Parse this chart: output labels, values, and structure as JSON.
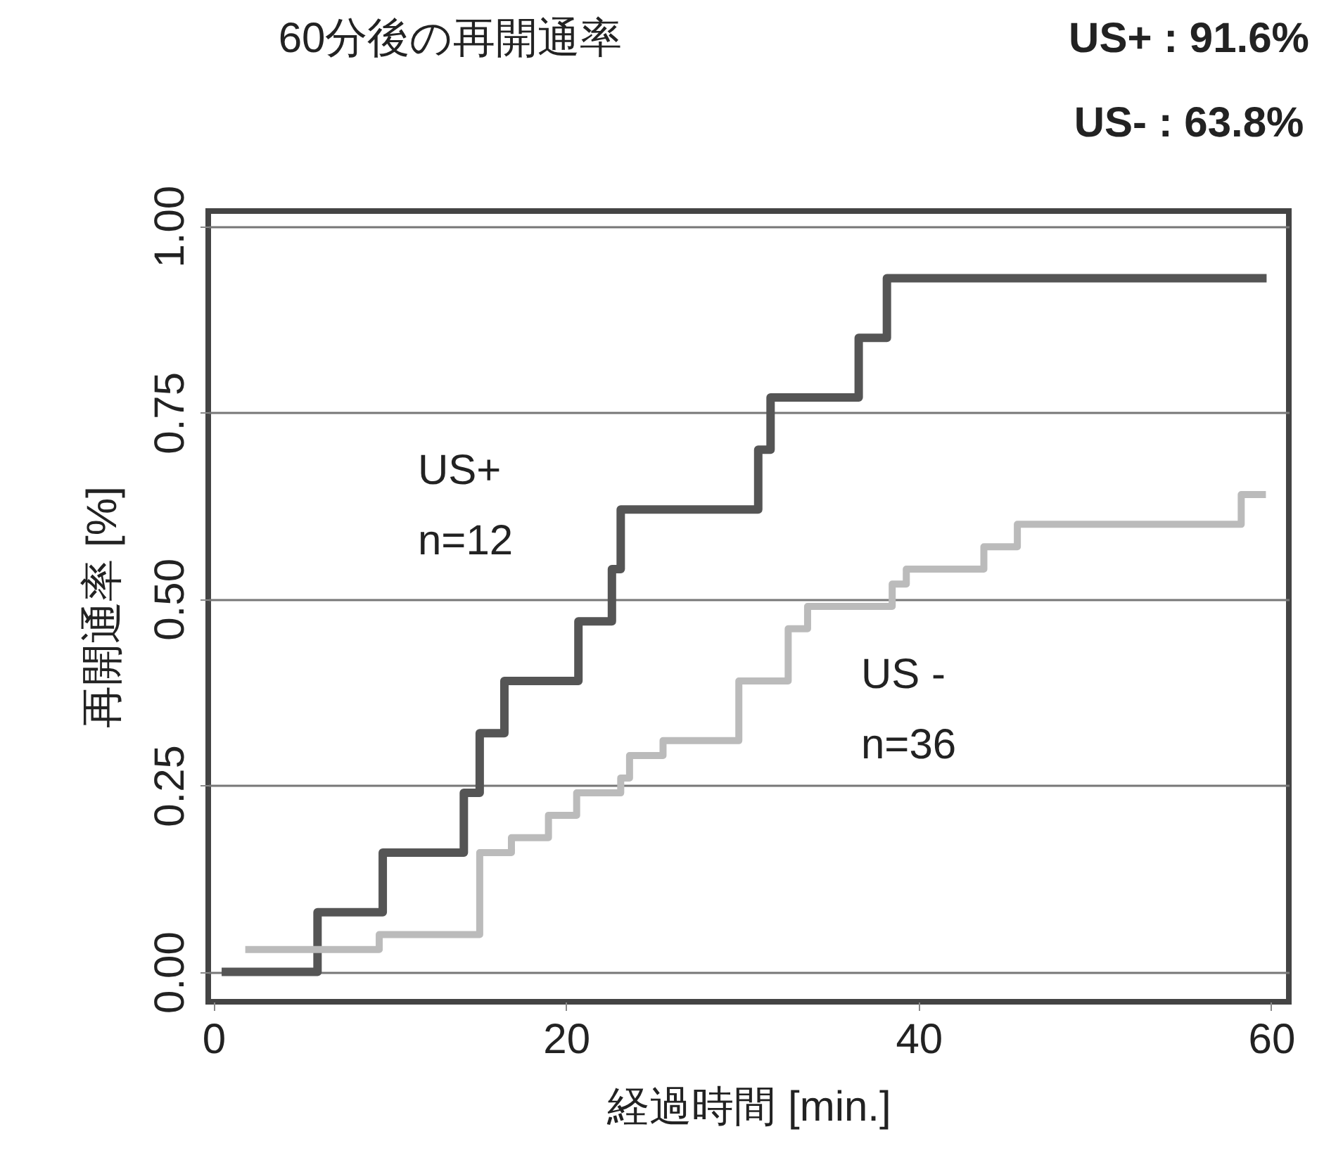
{
  "chart_data": {
    "type": "step",
    "title": "60分後の再開通率",
    "xlabel": "経過時間 [min.]",
    "ylabel": "再開通率 [%]",
    "annotations": [
      "US+ : 91.6%",
      "US- : 63.8%",
      "n=12",
      "n=36"
    ],
    "xlim": [
      -0.3,
      61
    ],
    "xticks": [
      0,
      20,
      40,
      60
    ],
    "ylim": [
      -0.04,
      1.02
    ],
    "yticks": [
      {
        "value": 0,
        "label": "0.00"
      },
      {
        "value": 0.25,
        "label": "0.25"
      },
      {
        "value": 0.5,
        "label": "0.50"
      },
      {
        "value": 0.75,
        "label": "0.75"
      },
      {
        "value": 1,
        "label": "1.00"
      }
    ],
    "grid": "y",
    "series": [
      {
        "name": "US+",
        "color": "#555555",
        "x": [
          0.7,
          5.9,
          9.6,
          14.2,
          15.1,
          16.5,
          20.7,
          22.6,
          23.1,
          30.9,
          31.6,
          36.6,
          38.2,
          59.5
        ],
        "values": [
          0,
          0.08,
          0.16,
          0.24,
          0.32,
          0.39,
          0.47,
          0.54,
          0.62,
          0.7,
          0.77,
          0.85,
          0.93,
          0.93
        ]
      },
      {
        "name": "US -",
        "color": "#bbbbbb",
        "x": [
          2.0,
          9.4,
          15.1,
          16.9,
          19.0,
          20.6,
          23.1,
          23.6,
          25.5,
          29.8,
          32.6,
          33.7,
          38.5,
          39.3,
          43.7,
          45.6,
          58.3,
          59.5
        ],
        "values": [
          0.03,
          0.05,
          0.16,
          0.18,
          0.21,
          0.24,
          0.26,
          0.29,
          0.31,
          0.39,
          0.46,
          0.49,
          0.52,
          0.54,
          0.57,
          0.6,
          0.64,
          0.64
        ]
      }
    ]
  }
}
